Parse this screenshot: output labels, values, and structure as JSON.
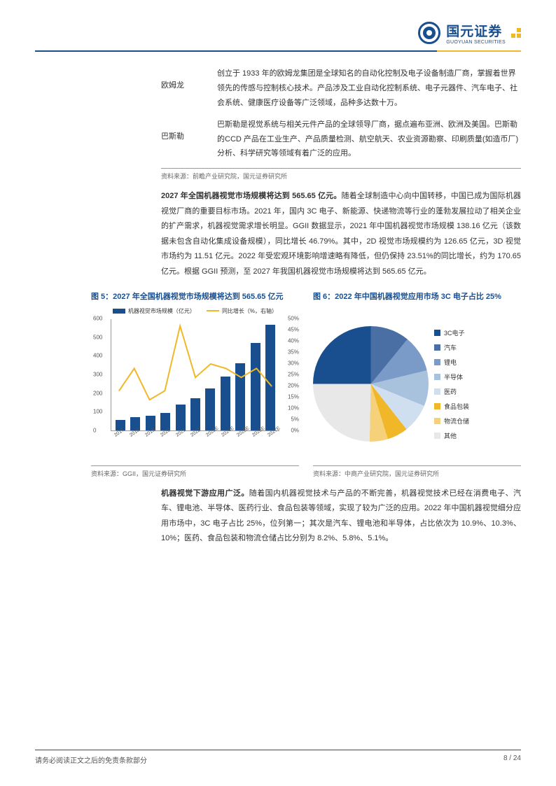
{
  "header": {
    "logo_cn": "国元证券",
    "logo_en": "GUOYUAN SECURITIES"
  },
  "companies": [
    {
      "name": "欧姆龙",
      "desc": "创立于 1933 年的欧姆龙集团是全球知名的自动化控制及电子设备制造厂商，掌握着世界领先的传感与控制核心技术。产品涉及工业自动化控制系统、电子元器件、汽车电子、社会系统、健康医疗设备等广泛领域，品种多达数十万。"
    },
    {
      "name": "巴斯勒",
      "desc": "巴斯勒是视觉系统与相关元件产品的全球领导厂商，据点遍布亚洲、欧洲及美国。巴斯勒的CCD 产品在工业生产、产品质量检测、航空航天、农业资源勘察、印刷质量(如造币厂)分析、科学研究等领域有着广泛的应用。"
    }
  ],
  "table_source": "资料来源：前瞻产业研究院，国元证券研究所",
  "para1_bold": "2027 年全国机器视觉市场规模将达到 565.65 亿元。",
  "para1": "随着全球制造中心向中国转移，中国已成为国际机器视觉厂商的重要目标市场。2021 年，国内 3C 电子、新能源、快递物流等行业的蓬勃发展拉动了相关企业的扩产需求，机器视觉需求增长明显。GGII 数据显示，2021 年中国机器视觉市场规模 138.16 亿元（该数据未包含自动化集成设备规模），同比增长 46.79%。其中，2D 视觉市场规模约为 126.65 亿元，3D 视觉市场约为 11.51 亿元。2022 年受宏观环境影响增速略有降低，但仍保持 23.51%的同比增长，约为 170.65 亿元。根据 GGII 预测，至 2027 年我国机器视觉市场规模将达到 565.65 亿元。",
  "chart5_title": "图 5：2027 年全国机器视觉市场规模将达到 565.65 亿元",
  "chart6_title": "图 6：2022 年中国机器视觉应用市场 3C 电子占比 25%",
  "bar_chart": {
    "legend1": "机器视觉市场规模（亿元）",
    "legend2": "同比增长（%，右轴）",
    "legend1_color": "#1a4f8f",
    "legend2_color": "#f0b828",
    "y_max": 600,
    "y_ticks": [
      0,
      100,
      200,
      300,
      400,
      500,
      600
    ],
    "y2_ticks": [
      "0%",
      "5%",
      "10%",
      "15%",
      "20%",
      "25%",
      "30%",
      "35%",
      "40%",
      "45%",
      "50%"
    ],
    "categories": [
      "2017",
      "2018",
      "2019",
      "2020",
      "2021",
      "2022",
      "2023E",
      "2024E",
      "2025E",
      "2026E",
      "2027E"
    ],
    "values": [
      55,
      70,
      80,
      95,
      138,
      171,
      225,
      290,
      360,
      470,
      566
    ],
    "growth": [
      18,
      28,
      14,
      18,
      47,
      24,
      30,
      28,
      24,
      28,
      20
    ]
  },
  "pie_chart": {
    "items": [
      {
        "label": "3C电子",
        "color": "#1a4f8f",
        "value": 25
      },
      {
        "label": "汽车",
        "color": "#4a6fa5",
        "value": 10.9
      },
      {
        "label": "锂电",
        "color": "#7a9bc7",
        "value": 10.3
      },
      {
        "label": "半导体",
        "color": "#a8c1dd",
        "value": 10
      },
      {
        "label": "医药",
        "color": "#d0dff0",
        "value": 8.2
      },
      {
        "label": "食品包装",
        "color": "#f0b828",
        "value": 5.8
      },
      {
        "label": "物流仓储",
        "color": "#f5d27a",
        "value": 5.1
      },
      {
        "label": "其他",
        "color": "#e8e8e8",
        "value": 24.7
      }
    ]
  },
  "chart5_source": "资料来源：GGII，国元证券研究所",
  "chart6_source": "资料来源：中商产业研究院，国元证券研究所",
  "para2_bold": "机器视觉下游应用广泛。",
  "para2": "随着国内机器视觉技术与产品的不断完善，机器视觉技术已经在消费电子、汽车、锂电池、半导体、医药行业、食品包装等领域，实现了较为广泛的应用。2022 年中国机器视觉细分应用市场中，3C 电子占比 25%，位列第一；其次是汽车、锂电池和半导体，占比依次为 10.9%、10.3%、10%；医药、食品包装和物流仓储占比分别为 8.2%、5.8%、5.1%。",
  "footer": {
    "left": "请务必阅读正文之后的免责条款部分",
    "page": "8 / 24"
  }
}
